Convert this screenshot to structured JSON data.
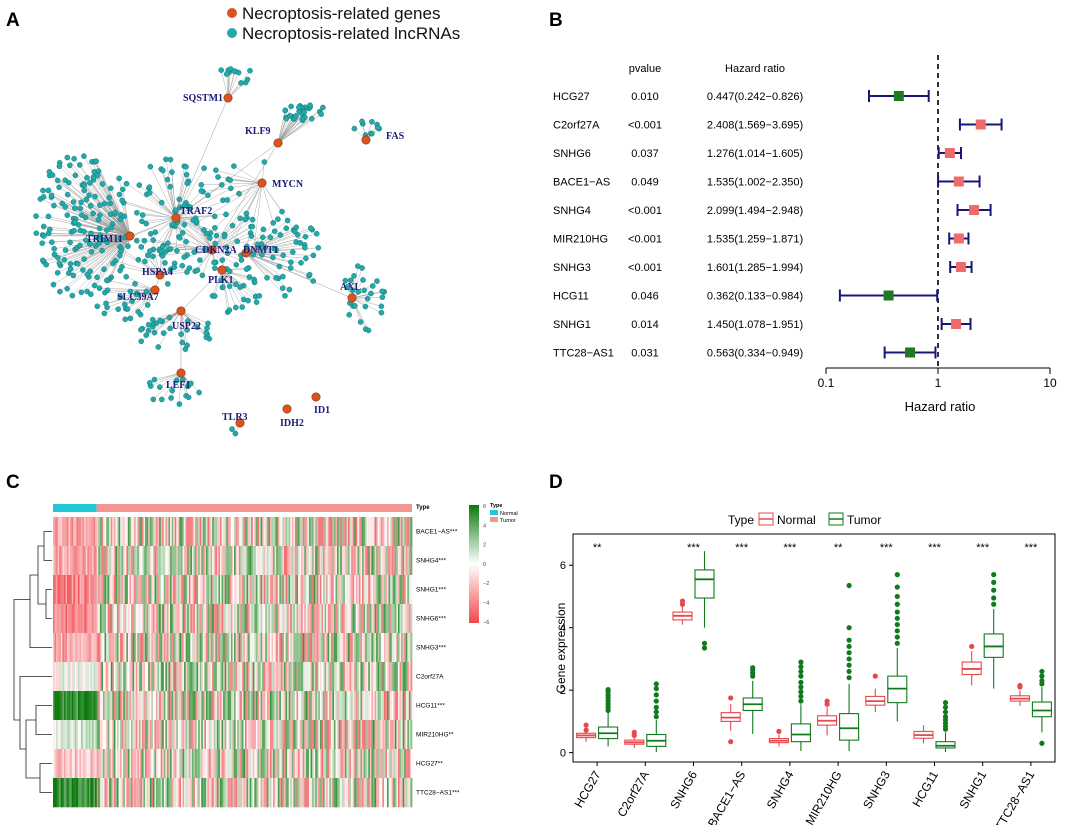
{
  "panels": {
    "a": "A",
    "b": "B",
    "c": "C",
    "d": "D"
  },
  "colors": {
    "gene_node": "#d9541f",
    "lnc_node": "#24a8a8",
    "edge": "#9a9a9a",
    "label": "#1c1c7a",
    "forest_protective": "#1f7a1f",
    "forest_risk": "#ef6a6a",
    "forest_ci": "#17177a",
    "box_normal": "#e8474c",
    "box_tumor": "#117a1e",
    "heat_high": "#0b7a0b",
    "heat_low": "#f0484d",
    "anno_normal": "#22c6d6",
    "anno_tumor": "#f59592"
  },
  "network": {
    "legend": [
      {
        "label": "Necroptosis-related genes",
        "color": "#d9541f"
      },
      {
        "label": "Necroptosis-related lncRNAs",
        "color": "#24a8a8"
      }
    ],
    "hubs": [
      {
        "name": "SQSTM1",
        "n": 12
      },
      {
        "name": "KLF9",
        "n": 28
      },
      {
        "name": "FAS",
        "n": 10
      },
      {
        "name": "MYCN",
        "n": 20
      },
      {
        "name": "TRAF2",
        "n": 60
      },
      {
        "name": "TRIM11",
        "n": 150
      },
      {
        "name": "CDKN2A",
        "n": 45
      },
      {
        "name": "DNMT1",
        "n": 45
      },
      {
        "name": "HSPA4",
        "n": 20
      },
      {
        "name": "PLK1",
        "n": 25
      },
      {
        "name": "SLC39A7",
        "n": 25
      },
      {
        "name": "AXL",
        "n": 28
      },
      {
        "name": "USP22",
        "n": 30
      },
      {
        "name": "LEF1",
        "n": 18
      },
      {
        "name": "TLR3",
        "n": 2
      },
      {
        "name": "IDH2",
        "n": 0
      },
      {
        "name": "ID1",
        "n": 0
      }
    ]
  },
  "chart_data": [
    {
      "type": "forest",
      "xlabel": "Hazard ratio",
      "xscale": "log",
      "xlim": [
        0.1,
        10
      ],
      "xticks": [
        "0.1",
        "1",
        "10"
      ],
      "reference_line": 1,
      "columns": {
        "pvalue": "pvalue",
        "hr": "Hazard ratio"
      },
      "rows": [
        {
          "gene": "HCG27",
          "p": "0.010",
          "hr_text": "0.447(0.242−0.826)",
          "hr": 0.447,
          "lo": 0.242,
          "hi": 0.826
        },
        {
          "gene": "C2orf27A",
          "p": "<0.001",
          "hr_text": "2.408(1.569−3.695)",
          "hr": 2.408,
          "lo": 1.569,
          "hi": 3.695
        },
        {
          "gene": "SNHG6",
          "p": "0.037",
          "hr_text": "1.276(1.014−1.605)",
          "hr": 1.276,
          "lo": 1.014,
          "hi": 1.605
        },
        {
          "gene": "BACE1−AS",
          "p": "0.049",
          "hr_text": "1.535(1.002−2.350)",
          "hr": 1.535,
          "lo": 1.002,
          "hi": 2.35
        },
        {
          "gene": "SNHG4",
          "p": "<0.001",
          "hr_text": "2.099(1.494−2.948)",
          "hr": 2.099,
          "lo": 1.494,
          "hi": 2.948
        },
        {
          "gene": "MIR210HG",
          "p": "<0.001",
          "hr_text": "1.535(1.259−1.871)",
          "hr": 1.535,
          "lo": 1.259,
          "hi": 1.871
        },
        {
          "gene": "SNHG3",
          "p": "<0.001",
          "hr_text": "1.601(1.285−1.994)",
          "hr": 1.601,
          "lo": 1.285,
          "hi": 1.994
        },
        {
          "gene": "HCG11",
          "p": "0.046",
          "hr_text": "0.362(0.133−0.984)",
          "hr": 0.362,
          "lo": 0.133,
          "hi": 0.984
        },
        {
          "gene": "SNHG1",
          "p": "0.014",
          "hr_text": "1.450(1.078−1.951)",
          "hr": 1.45,
          "lo": 1.078,
          "hi": 1.951
        },
        {
          "gene": "TTC28−AS1",
          "p": "0.031",
          "hr_text": "0.563(0.334−0.949)",
          "hr": 0.563,
          "lo": 0.334,
          "hi": 0.949
        }
      ]
    },
    {
      "type": "heatmap",
      "rows": [
        "BACE1−AS***",
        "SNHG4***",
        "SNHG1***",
        "SNHG6***",
        "SNHG3***",
        "C2orf27A",
        "HCG11***",
        "MIR210HG**",
        "HCG27**",
        "TTC28−AS1***"
      ],
      "annotation_title": "Type",
      "groups": [
        "Normal",
        "Tumor"
      ],
      "normal_fraction": 0.12,
      "scale_title": "Type",
      "scale_ticks": [
        "6",
        "4",
        "2",
        "0",
        "−2",
        "−4",
        "−6"
      ],
      "scale_range": [
        -6,
        6
      ],
      "normal_bias": [
        -1.5,
        -1.5,
        -2,
        -2,
        -1.5,
        0,
        2.5,
        0.5,
        -1,
        2.5
      ]
    },
    {
      "type": "boxplot",
      "legend_title": "Type",
      "groups": [
        "Normal",
        "Tumor"
      ],
      "ylabel": "Gene expression",
      "ylim": [
        -0.3,
        7
      ],
      "yticks": [
        0,
        2,
        4,
        6
      ],
      "categories": [
        "HCG27",
        "C2orf27A",
        "SNHG6",
        "BACE1−AS",
        "SNHG4",
        "MIR210HG",
        "SNHG3",
        "HCG11",
        "SNHG1",
        "TTC28−AS1"
      ],
      "significance": [
        "**",
        "",
        "***",
        "***",
        "***",
        "**",
        "***",
        "***",
        "***",
        "***"
      ],
      "normal": [
        {
          "min": 0.35,
          "q1": 0.48,
          "med": 0.55,
          "q3": 0.62,
          "max": 0.78,
          "out": [
            0.72,
            0.88
          ]
        },
        {
          "min": 0.15,
          "q1": 0.27,
          "med": 0.33,
          "q3": 0.4,
          "max": 0.52,
          "out": [
            0.65,
            0.55
          ]
        },
        {
          "min": 4.1,
          "q1": 4.25,
          "med": 4.38,
          "q3": 4.5,
          "max": 4.7,
          "out": [
            4.85,
            4.75
          ]
        },
        {
          "min": 0.7,
          "q1": 1.0,
          "med": 1.12,
          "q3": 1.28,
          "max": 1.55,
          "out": [
            0.35,
            1.75
          ]
        },
        {
          "min": 0.2,
          "q1": 0.32,
          "med": 0.38,
          "q3": 0.45,
          "max": 0.58,
          "out": [
            0.68
          ]
        },
        {
          "min": 0.55,
          "q1": 0.88,
          "med": 1.02,
          "q3": 1.18,
          "max": 1.45,
          "out": [
            1.65,
            1.55
          ]
        },
        {
          "min": 1.3,
          "q1": 1.52,
          "med": 1.65,
          "q3": 1.8,
          "max": 2.05,
          "out": [
            2.45
          ]
        },
        {
          "min": 0.3,
          "q1": 0.46,
          "med": 0.56,
          "q3": 0.68,
          "max": 0.88,
          "out": []
        },
        {
          "min": 2.15,
          "q1": 2.5,
          "med": 2.68,
          "q3": 2.9,
          "max": 3.25,
          "out": [
            3.4
          ]
        },
        {
          "min": 1.5,
          "q1": 1.65,
          "med": 1.73,
          "q3": 1.82,
          "max": 1.98,
          "out": [
            2.1,
            2.15
          ]
        }
      ],
      "tumor": [
        {
          "min": 0.2,
          "q1": 0.45,
          "med": 0.62,
          "q3": 0.82,
          "max": 1.3,
          "out": [
            1.35,
            1.45,
            1.55,
            1.65,
            1.75,
            1.85,
            1.95,
            2.02
          ]
        },
        {
          "min": 0.02,
          "q1": 0.2,
          "med": 0.38,
          "q3": 0.58,
          "max": 1.05,
          "out": [
            1.15,
            1.3,
            1.45,
            1.65,
            1.85,
            2.05,
            2.2
          ]
        },
        {
          "min": 4.0,
          "q1": 4.95,
          "med": 5.55,
          "q3": 5.85,
          "max": 6.45,
          "out": [
            3.5,
            3.35
          ]
        },
        {
          "min": 0.6,
          "q1": 1.35,
          "med": 1.55,
          "q3": 1.75,
          "max": 2.3,
          "out": [
            2.45,
            2.55,
            2.65,
            2.72
          ]
        },
        {
          "min": 0.05,
          "q1": 0.35,
          "med": 0.58,
          "q3": 0.92,
          "max": 1.55,
          "out": [
            1.65,
            1.8,
            1.95,
            2.1,
            2.25,
            2.45,
            2.6,
            2.75,
            2.9
          ]
        },
        {
          "min": 0.05,
          "q1": 0.4,
          "med": 0.78,
          "q3": 1.25,
          "max": 2.2,
          "out": [
            2.4,
            2.6,
            2.8,
            3.0,
            3.2,
            3.4,
            3.6,
            4.0,
            5.35
          ]
        },
        {
          "min": 1.0,
          "q1": 1.6,
          "med": 2.05,
          "q3": 2.45,
          "max": 3.35,
          "out": [
            3.5,
            3.7,
            3.9,
            4.1,
            4.3,
            4.5,
            4.75,
            5.0,
            5.3,
            5.7
          ]
        },
        {
          "min": 0.02,
          "q1": 0.15,
          "med": 0.22,
          "q3": 0.35,
          "max": 0.65,
          "out": [
            0.75,
            0.85,
            0.95,
            1.05,
            1.15,
            1.3,
            1.45,
            1.6
          ]
        },
        {
          "min": 2.05,
          "q1": 3.05,
          "med": 3.4,
          "q3": 3.8,
          "max": 4.6,
          "out": [
            4.75,
            4.95,
            5.2,
            5.45,
            5.7
          ]
        },
        {
          "min": 0.65,
          "q1": 1.15,
          "med": 1.35,
          "q3": 1.62,
          "max": 2.1,
          "out": [
            2.2,
            2.3,
            2.45,
            2.6,
            0.3
          ]
        }
      ]
    }
  ]
}
